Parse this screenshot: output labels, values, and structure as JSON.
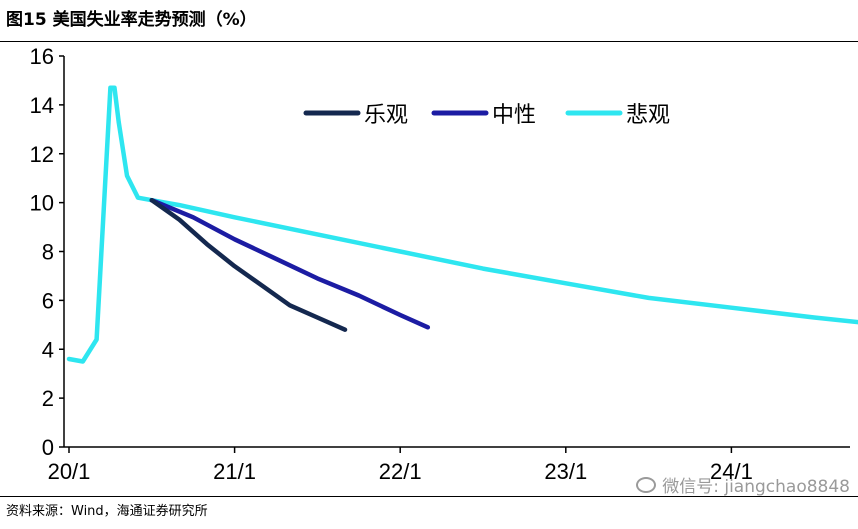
{
  "title": "图15 美国失业率走势预测（%）",
  "source": "资料来源：Wind，海通证券研究所",
  "watermark": "微信号: jiangchao8848",
  "chart_data": {
    "type": "line",
    "title": "图15 美国失业率走势预测（%）",
    "xlabel": "",
    "ylabel": "",
    "ylim": [
      0,
      16
    ],
    "yticks": [
      0,
      2,
      4,
      6,
      8,
      10,
      12,
      14,
      16
    ],
    "xlim": [
      0,
      60
    ],
    "xticks": [
      {
        "value": 0,
        "label": "20/1"
      },
      {
        "value": 12,
        "label": "21/1"
      },
      {
        "value": 24,
        "label": "22/1"
      },
      {
        "value": 36,
        "label": "23/1"
      },
      {
        "value": 48,
        "label": "24/1"
      }
    ],
    "grid": false,
    "legend": "top",
    "series": [
      {
        "name": "乐观",
        "color": "#14284f",
        "x": [
          6,
          8,
          10,
          12,
          14,
          16,
          18,
          20
        ],
        "values": [
          10.1,
          9.3,
          8.3,
          7.4,
          6.6,
          5.8,
          5.3,
          4.8
        ]
      },
      {
        "name": "中性",
        "color": "#1c1ca3",
        "x": [
          6,
          9,
          12,
          15,
          18,
          21,
          24,
          26
        ],
        "values": [
          10.1,
          9.4,
          8.5,
          7.7,
          6.9,
          6.2,
          5.4,
          4.9
        ]
      },
      {
        "name": "悲观",
        "color": "#2ee6f0",
        "x": [
          0,
          1,
          2,
          3,
          3.3,
          3.6,
          4.2,
          5,
          6,
          8,
          12,
          18,
          24,
          30,
          36,
          42,
          48,
          54,
          59
        ],
        "values": [
          3.6,
          3.5,
          4.4,
          14.7,
          14.7,
          13.3,
          11.1,
          10.2,
          10.1,
          9.9,
          9.4,
          8.7,
          8.0,
          7.3,
          6.7,
          6.1,
          5.7,
          5.3,
          5.0
        ]
      }
    ]
  }
}
